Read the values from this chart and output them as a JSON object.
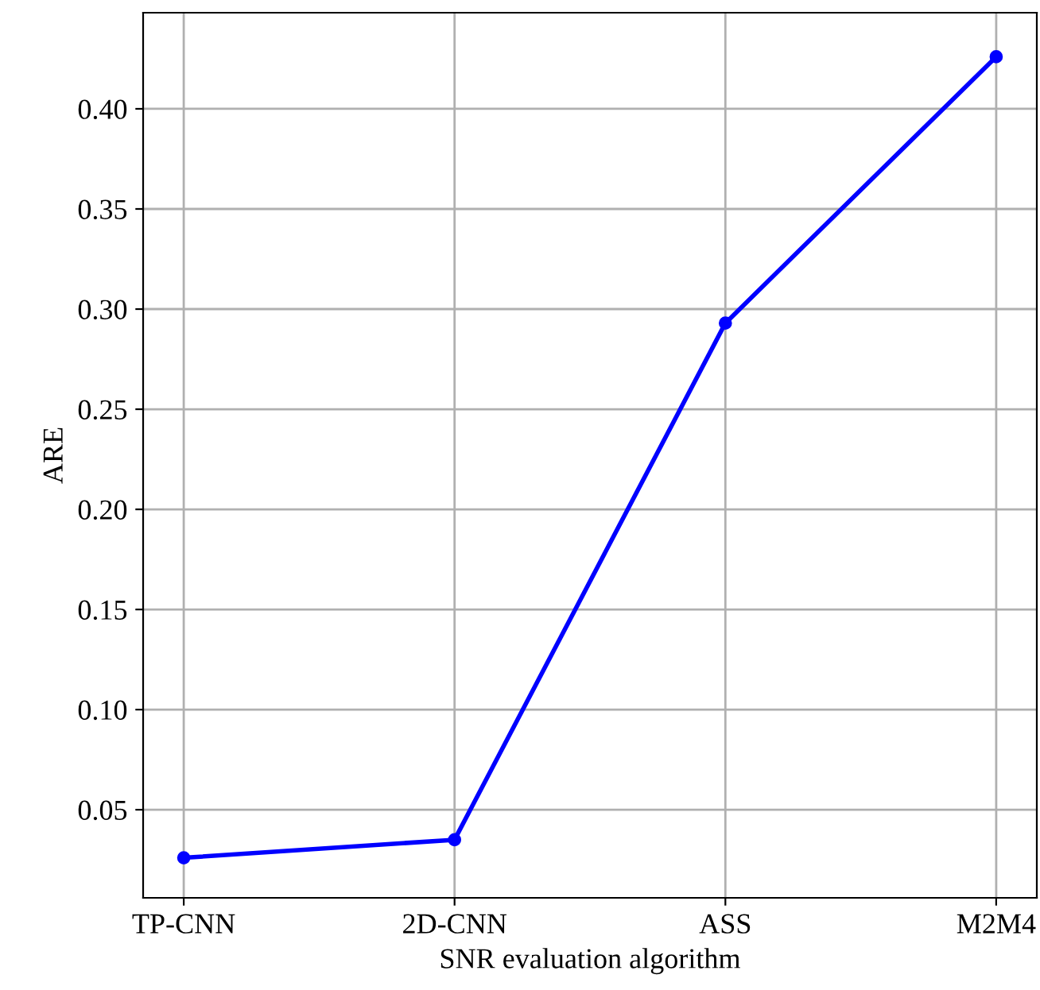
{
  "chart_data": {
    "type": "line",
    "xlabel": "SNR evaluation algorithm",
    "ylabel": "ARE",
    "categories": [
      "TP-CNN",
      "2D-CNN",
      "ASS",
      "M2M4"
    ],
    "series": [
      {
        "color": "#0000ff",
        "values": [
          0.026,
          0.035,
          0.293,
          0.426
        ]
      }
    ],
    "ylim": [
      0.006,
      0.448
    ],
    "yticks": [
      0.05,
      {
        "value": 0.1,
        "label": "0.10"
      },
      0.15,
      {
        "value": 0.2,
        "label": "0.20"
      },
      0.25,
      {
        "value": 0.3,
        "label": "0.30"
      },
      0.35,
      {
        "value": 0.4,
        "label": "0.40"
      }
    ],
    "grid": true,
    "marker": "circle",
    "line_style": "solid"
  }
}
